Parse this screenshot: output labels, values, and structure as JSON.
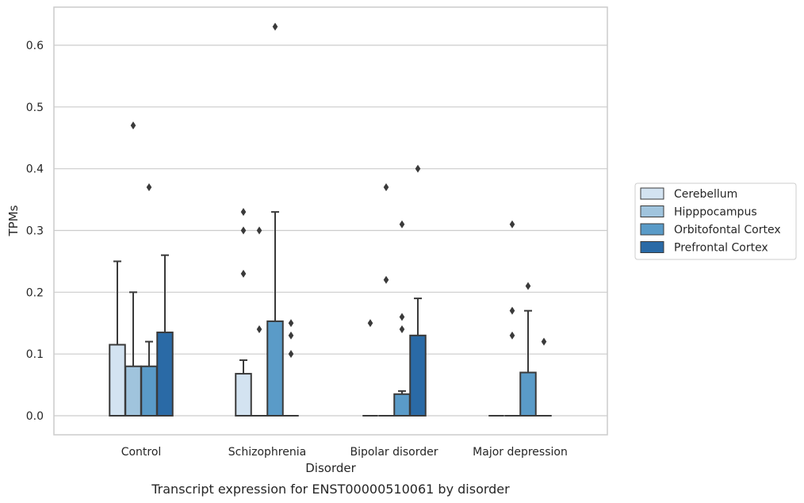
{
  "chart_data": {
    "type": "box",
    "caption": "Transcript expression for ENST00000510061 by disorder",
    "xlabel": "Disorder",
    "ylabel": "TPMs",
    "ylim": [
      -0.03,
      0.665
    ],
    "yticks": [
      0.0,
      0.1,
      0.2,
      0.3,
      0.4,
      0.5,
      0.6
    ],
    "ytick_labels": [
      "0.0",
      "0.1",
      "0.2",
      "0.3",
      "0.4",
      "0.5",
      "0.6"
    ],
    "grid": true,
    "legend_position": "right",
    "categories": [
      "Control",
      "Schizophrenia",
      "Bipolar disorder",
      "Major depression"
    ],
    "series": [
      {
        "name": "Cerebellum",
        "color": "#d3e3f1",
        "boxes": [
          {
            "q1": 0.0,
            "median": 0.0,
            "q3": 0.115,
            "whisker_low": 0.0,
            "whisker_high": 0.25,
            "outliers": []
          },
          {
            "q1": 0.0,
            "median": 0.0,
            "q3": 0.068,
            "whisker_low": 0.0,
            "whisker_high": 0.09,
            "outliers": [
              0.23,
              0.3,
              0.33
            ]
          },
          {
            "q1": 0.0,
            "median": 0.0,
            "q3": 0.0,
            "whisker_low": 0.0,
            "whisker_high": 0.0,
            "outliers": [
              0.15
            ]
          },
          {
            "q1": 0.0,
            "median": 0.0,
            "q3": 0.0,
            "whisker_low": 0.0,
            "whisker_high": 0.0,
            "outliers": []
          }
        ]
      },
      {
        "name": "Hipppocampus",
        "color": "#a0c4dd",
        "boxes": [
          {
            "q1": 0.0,
            "median": 0.0,
            "q3": 0.08,
            "whisker_low": 0.0,
            "whisker_high": 0.2,
            "outliers": [
              0.47
            ]
          },
          {
            "q1": 0.0,
            "median": 0.0,
            "q3": 0.0,
            "whisker_low": 0.0,
            "whisker_high": 0.0,
            "outliers": [
              0.14,
              0.3
            ]
          },
          {
            "q1": 0.0,
            "median": 0.0,
            "q3": 0.0,
            "whisker_low": 0.0,
            "whisker_high": 0.0,
            "outliers": [
              0.22,
              0.37
            ]
          },
          {
            "q1": 0.0,
            "median": 0.0,
            "q3": 0.0,
            "whisker_low": 0.0,
            "whisker_high": 0.0,
            "outliers": [
              0.13,
              0.17,
              0.31
            ]
          }
        ]
      },
      {
        "name": "Orbitofontal Cortex",
        "color": "#5a9bc8",
        "boxes": [
          {
            "q1": 0.0,
            "median": 0.0,
            "q3": 0.08,
            "whisker_low": 0.0,
            "whisker_high": 0.12,
            "outliers": [
              0.37
            ]
          },
          {
            "q1": 0.0,
            "median": 0.0,
            "q3": 0.153,
            "whisker_low": 0.0,
            "whisker_high": 0.33,
            "outliers": [
              0.63
            ]
          },
          {
            "q1": 0.0,
            "median": 0.0,
            "q3": 0.035,
            "whisker_low": 0.0,
            "whisker_high": 0.04,
            "outliers": [
              0.14,
              0.16,
              0.31
            ]
          },
          {
            "q1": 0.0,
            "median": 0.0,
            "q3": 0.07,
            "whisker_low": 0.0,
            "whisker_high": 0.17,
            "outliers": [
              0.21
            ]
          }
        ]
      },
      {
        "name": "Prefrontal Cortex",
        "color": "#2a6aa6",
        "boxes": [
          {
            "q1": 0.0,
            "median": 0.0,
            "q3": 0.135,
            "whisker_low": 0.0,
            "whisker_high": 0.26,
            "outliers": []
          },
          {
            "q1": 0.0,
            "median": 0.0,
            "q3": 0.0,
            "whisker_low": 0.0,
            "whisker_high": 0.0,
            "outliers": [
              0.1,
              0.13,
              0.15
            ]
          },
          {
            "q1": 0.0,
            "median": 0.0,
            "q3": 0.13,
            "whisker_low": 0.0,
            "whisker_high": 0.19,
            "outliers": [
              0.4
            ]
          },
          {
            "q1": 0.0,
            "median": 0.0,
            "q3": 0.0,
            "whisker_low": 0.0,
            "whisker_high": 0.0,
            "outliers": [
              0.12
            ]
          }
        ]
      }
    ]
  }
}
